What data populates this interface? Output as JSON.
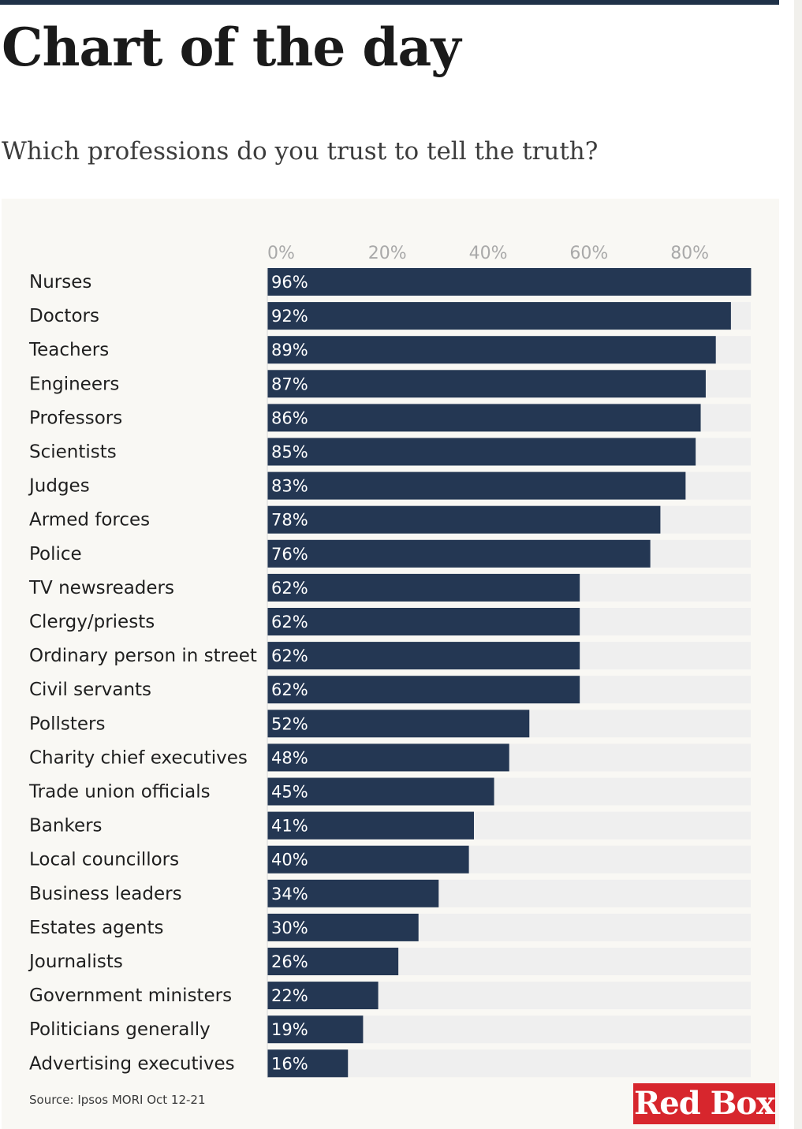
{
  "header": {
    "title": "Chart of the day",
    "subtitle": "Which professions do you trust to tell the truth?"
  },
  "footer": {
    "source": "Source: Ipsos MORI Oct 12-21",
    "logo_text": "Red Box"
  },
  "colors": {
    "bar": "#243753",
    "track": "#efefef",
    "panel": "#f9f8f4",
    "logo": "#d7262d"
  },
  "chart_data": {
    "type": "bar",
    "orientation": "horizontal",
    "title": "Which professions do you trust to tell the truth?",
    "xlabel": "",
    "ylabel": "",
    "xlim": [
      0,
      96
    ],
    "ticks": [
      0,
      20,
      40,
      60,
      80
    ],
    "tick_labels": [
      "0%",
      "20%",
      "40%",
      "60%",
      "80%"
    ],
    "grid": false,
    "categories": [
      "Nurses",
      "Doctors",
      "Teachers",
      "Engineers",
      "Professors",
      "Scientists",
      "Judges",
      "Armed forces",
      "Police",
      "TV newsreaders",
      "Clergy/priests",
      "Ordinary person in street",
      "Civil servants",
      "Pollsters",
      "Charity chief executives",
      "Trade union officials",
      "Bankers",
      "Local councillors",
      "Business leaders",
      "Estates agents",
      "Journalists",
      "Government ministers",
      "Politicians generally",
      "Advertising executives"
    ],
    "values": [
      96,
      92,
      89,
      87,
      86,
      85,
      83,
      78,
      76,
      62,
      62,
      62,
      62,
      52,
      48,
      45,
      41,
      40,
      34,
      30,
      26,
      22,
      19,
      16
    ],
    "value_labels": [
      "96%",
      "92%",
      "89%",
      "87%",
      "86%",
      "85%",
      "83%",
      "78%",
      "76%",
      "62%",
      "62%",
      "62%",
      "62%",
      "52%",
      "48%",
      "45%",
      "41%",
      "40%",
      "34%",
      "30%",
      "26%",
      "22%",
      "19%",
      "16%"
    ]
  }
}
